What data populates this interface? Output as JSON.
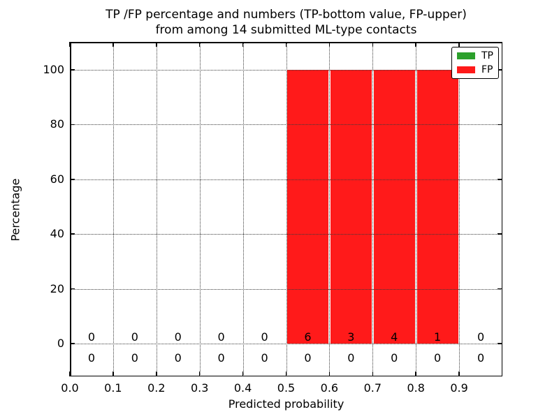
{
  "figure": {
    "title_line1": "TP /FP percentage and numbers (TP-bottom value, FP-upper)",
    "title_line2": "from among 14 submitted ML-type contacts"
  },
  "chart_data": {
    "type": "bar",
    "stacked": true,
    "title": "TP /FP percentage and numbers (TP-bottom value, FP-upper)\nfrom among 14 submitted ML-type contacts",
    "xlabel": "Predicted probability",
    "ylabel": "Percentage",
    "xlim": [
      0.0,
      1.0
    ],
    "ylim": [
      -12.0,
      110.2
    ],
    "grid": true,
    "grid_style": "dotted",
    "legend_position": "upper right",
    "bin_width": 0.1,
    "bin_centers": [
      0.05,
      0.15,
      0.25,
      0.35,
      0.45,
      0.55,
      0.65,
      0.75,
      0.85,
      0.95
    ],
    "xticks": [
      0.0,
      0.1,
      0.2,
      0.3,
      0.4,
      0.5,
      0.6,
      0.7,
      0.8,
      0.9
    ],
    "xtick_labels": [
      "0.0",
      "0.1",
      "0.2",
      "0.3",
      "0.4",
      "0.5",
      "0.6",
      "0.7",
      "0.8",
      "0.9"
    ],
    "yticks": [
      0,
      20,
      40,
      60,
      80,
      100
    ],
    "ytick_labels": [
      "0",
      "20",
      "40",
      "60",
      "80",
      "100"
    ],
    "series": [
      {
        "name": "TP",
        "color": "#2ca02c",
        "percent": [
          0,
          0,
          0,
          0,
          0,
          0,
          0,
          0,
          0,
          0
        ],
        "counts": [
          0,
          0,
          0,
          0,
          0,
          0,
          0,
          0,
          0,
          0
        ]
      },
      {
        "name": "FP",
        "color": "#ff1a1a",
        "percent": [
          0,
          0,
          0,
          0,
          0,
          100,
          100,
          100,
          100,
          0
        ],
        "counts": [
          0,
          0,
          0,
          0,
          0,
          6,
          3,
          4,
          1,
          0
        ]
      }
    ]
  }
}
